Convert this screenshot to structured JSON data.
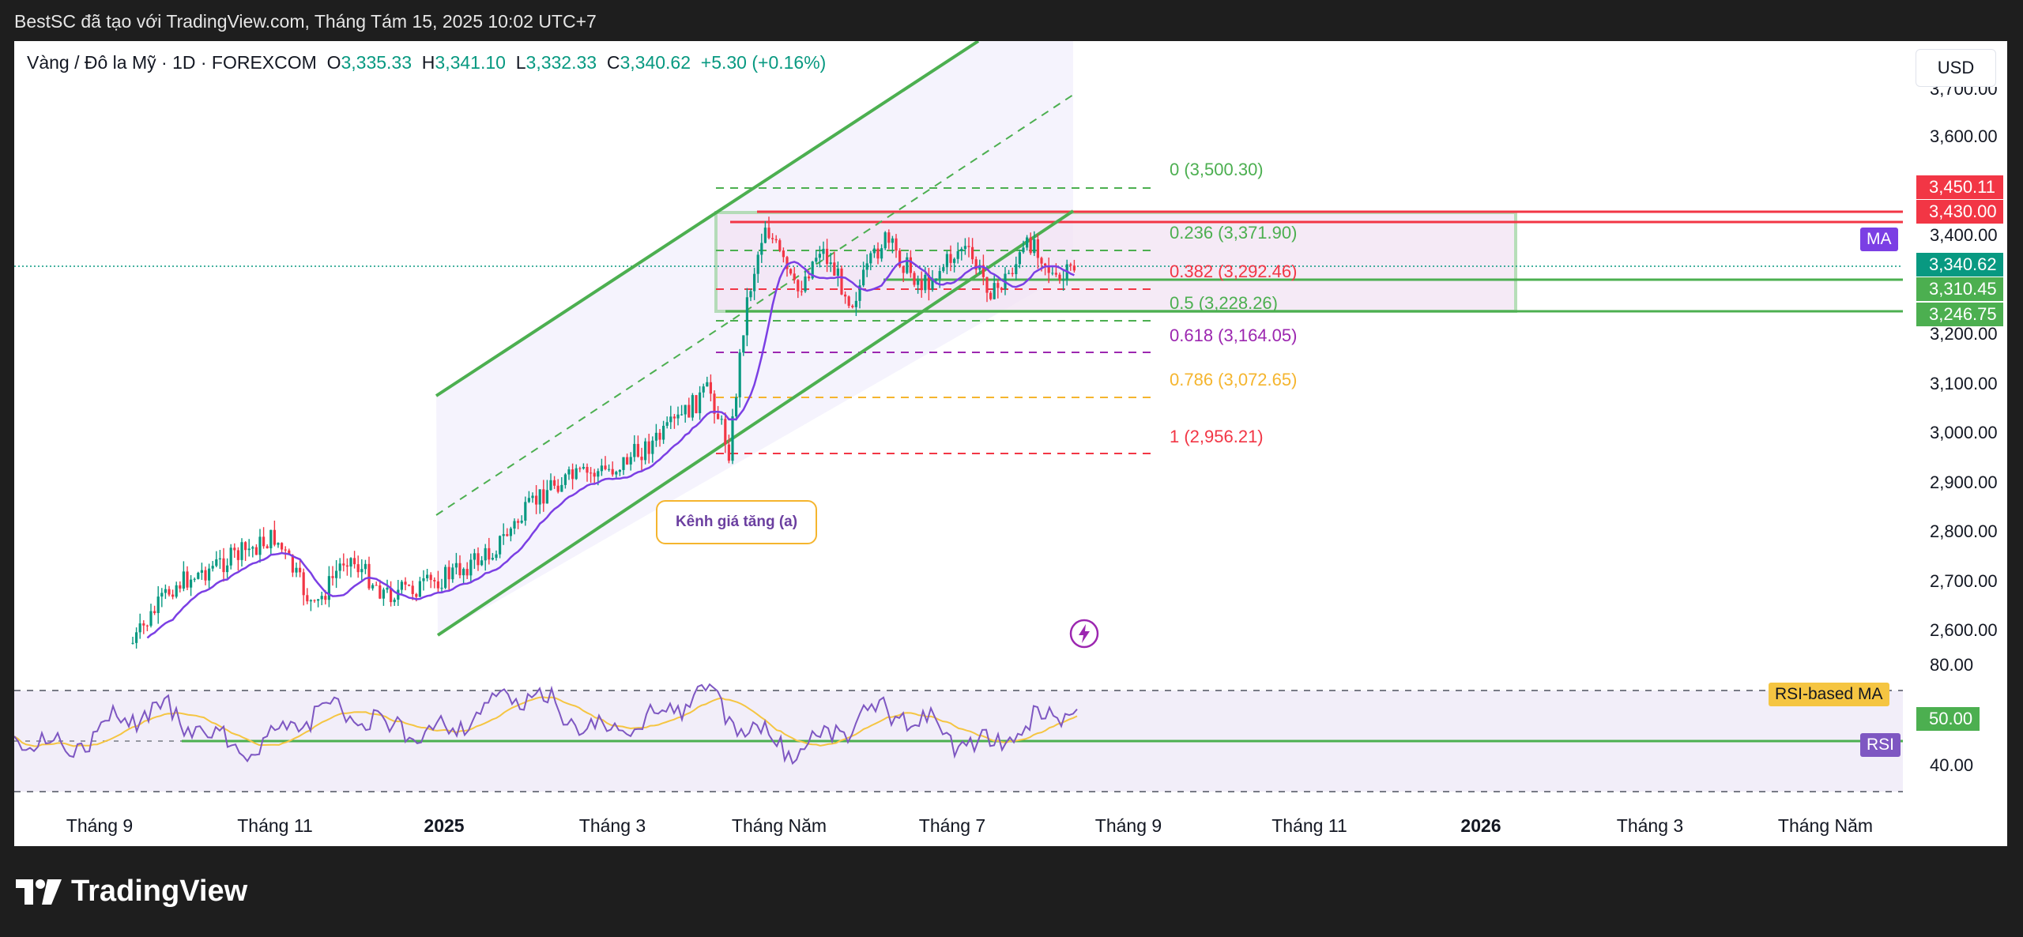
{
  "header": {
    "text": "BestSC đã tạo với TradingView.com, Tháng Tám 15, 2025 10:02 UTC+7"
  },
  "legend": {
    "symbol": "Vàng / Đô la Mỹ · 1D · FOREXCOM",
    "o_label": "O",
    "o_value": "3,335.33",
    "h_label": "H",
    "h_value": "3,341.10",
    "l_label": "L",
    "l_value": "3,332.33",
    "c_label": "C",
    "c_value": "3,340.62",
    "change": "+5.30 (+0.16%)"
  },
  "currency": "USD",
  "price_axis": [
    "3,700.00",
    "3,600.00",
    "3,400.00",
    "3,200.00",
    "3,100.00",
    "3,000.00",
    "2,900.00",
    "2,800.00",
    "2,700.00",
    "2,600.00"
  ],
  "price_labels": [
    {
      "text": "3,450.11",
      "color": "#f23645"
    },
    {
      "text": "3,430.00",
      "color": "#f23645"
    },
    {
      "text": "3,340.62",
      "color": "#089981"
    },
    {
      "text": "3,310.45",
      "color": "#4caf50"
    },
    {
      "text": "3,246.75",
      "color": "#4caf50"
    }
  ],
  "tags": {
    "ma": "MA",
    "rsi": "RSI",
    "rsi_ma": "RSI-based MA"
  },
  "rsi_axis": {
    "top": "80.00",
    "mid": "50.00",
    "bottom": "40.00"
  },
  "time_axis": [
    "Tháng 9",
    "Tháng 11",
    "2025",
    "Tháng 3",
    "Tháng Năm",
    "Tháng 7",
    "Tháng 9",
    "Tháng 11",
    "2026",
    "Tháng 3",
    "Tháng Năm"
  ],
  "fib_levels": [
    {
      "label": "0 (3,500.30)",
      "color": "#4caf50"
    },
    {
      "label": "0.236 (3,371.90)",
      "color": "#4caf50"
    },
    {
      "label": "0.382 (3,292.46)",
      "color": "#f23645"
    },
    {
      "label": "0.5 (3,228.26)",
      "color": "#4caf50"
    },
    {
      "label": "0.618 (3,164.05)",
      "color": "#9c27b0"
    },
    {
      "label": "0.786 (3,072.65)",
      "color": "#f5b52e"
    },
    {
      "label": "1 (2,956.21)",
      "color": "#f23645"
    }
  ],
  "channel_label": "Kênh giá tăng (a)",
  "footer": {
    "logo_text": "TradingView"
  },
  "colors": {
    "up": "#089981",
    "down": "#f23645",
    "ma": "#7b3fe4",
    "channel": "#4caf50",
    "rsi_line": "#7e57c2",
    "rsi_ma": "#f5c542"
  }
}
